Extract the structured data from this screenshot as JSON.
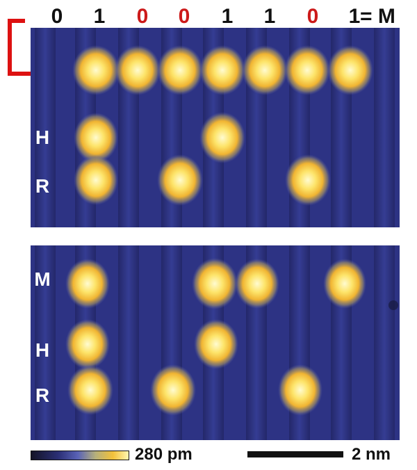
{
  "bits": [
    {
      "value": "0",
      "red": false
    },
    {
      "value": "1",
      "red": false
    },
    {
      "value": "0",
      "red": true
    },
    {
      "value": "0",
      "red": true
    },
    {
      "value": "1",
      "red": false
    },
    {
      "value": "1",
      "red": false
    },
    {
      "value": "0",
      "red": true
    },
    {
      "value": "1",
      "red": false
    }
  ],
  "equals_text": "= M",
  "top_panel": {
    "row_labels": [
      "H",
      "R"
    ]
  },
  "bottom_panel": {
    "row_labels": [
      "M",
      "H",
      "R"
    ]
  },
  "colorbar_label": "280 pm",
  "scalebar_label": "2 nm",
  "colors": {
    "arrow": "#dd1111",
    "red_bit": "#cc1a1a",
    "background_dark": "#2a2f78",
    "atom_core": "#fff3a6",
    "atom_edge": "#f0b432"
  }
}
